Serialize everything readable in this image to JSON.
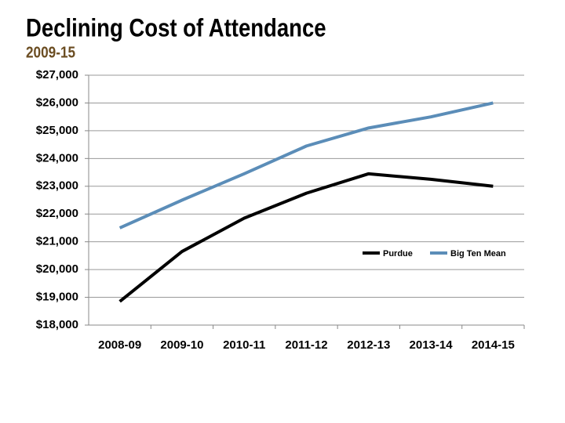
{
  "chart_data": {
    "type": "line",
    "title": "Declining Cost of Attendance",
    "subtitle": "2009-15",
    "categories": [
      "2008-09",
      "2009-10",
      "2010-11",
      "2011-12",
      "2012-13",
      "2013-14",
      "2014-15"
    ],
    "series": [
      {
        "name": "Purdue",
        "color": "#000000",
        "values": [
          18850,
          20650,
          21850,
          22750,
          23450,
          23250,
          23000
        ]
      },
      {
        "name": "Big Ten Mean",
        "color": "#5b8db8",
        "values": [
          21500,
          22500,
          23450,
          24450,
          25100,
          25500,
          26000
        ]
      }
    ],
    "ylim": [
      18000,
      27000
    ],
    "yticks": [
      {
        "value": 18000,
        "label": "$18,000"
      },
      {
        "value": 19000,
        "label": "$19,000"
      },
      {
        "value": 20000,
        "label": "$20,000"
      },
      {
        "value": 21000,
        "label": "$21,000"
      },
      {
        "value": 22000,
        "label": "$22,000"
      },
      {
        "value": 23000,
        "label": "$23,000"
      },
      {
        "value": 24000,
        "label": "$24,000"
      },
      {
        "value": 25000,
        "label": "$25,000"
      },
      {
        "value": 26000,
        "label": "$26,000"
      },
      {
        "value": 27000,
        "label": "$27,000"
      }
    ],
    "grid": true,
    "legend": "right"
  }
}
